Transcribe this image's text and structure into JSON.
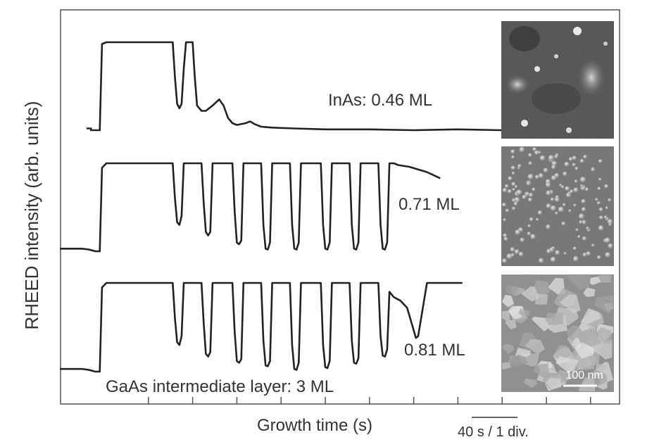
{
  "chart_data": {
    "type": "line",
    "title": "",
    "xlabel": "Growth time (s)",
    "ylabel": "RHEED intensity (arb. units)",
    "scale_bar_label": "40 s / 1 div.",
    "bottom_annotation": "GaAs intermediate layer: 3 ML",
    "image_scale_label": "100 nm",
    "x_units": "divisions (1 div. = 40 s)",
    "xlim": [
      -1,
      12
    ],
    "x_ticks": [
      1,
      2,
      3,
      4,
      5,
      6,
      7,
      8,
      9,
      10,
      11
    ],
    "grid": false,
    "series": [
      {
        "name": "InAs: 0.46 ML",
        "label": "InAs: 0.46 ML",
        "color": "#222222",
        "y_low": 0.0,
        "y_high": 1.0,
        "points": [
          [
            -0.4,
            0.02
          ],
          [
            -0.3,
            0.02
          ],
          [
            -0.3,
            0.0
          ],
          [
            -0.1,
            0.0
          ],
          [
            -0.05,
            0.98
          ],
          [
            0.05,
            1.0
          ],
          [
            1.55,
            1.0
          ],
          [
            1.6,
            0.6
          ],
          [
            1.65,
            0.3
          ],
          [
            1.7,
            0.25
          ],
          [
            1.75,
            0.3
          ],
          [
            1.8,
            0.7
          ],
          [
            1.85,
            1.0
          ],
          [
            2.0,
            1.0
          ],
          [
            2.05,
            0.6
          ],
          [
            2.1,
            0.28
          ],
          [
            2.2,
            0.22
          ],
          [
            2.3,
            0.22
          ],
          [
            2.45,
            0.28
          ],
          [
            2.6,
            0.35
          ],
          [
            2.7,
            0.28
          ],
          [
            2.8,
            0.14
          ],
          [
            2.9,
            0.08
          ],
          [
            3.0,
            0.06
          ],
          [
            3.2,
            0.08
          ],
          [
            3.3,
            0.1
          ],
          [
            3.4,
            0.07
          ],
          [
            3.55,
            0.04
          ],
          [
            3.8,
            0.03
          ],
          [
            4.3,
            0.02
          ],
          [
            5.0,
            0.01
          ],
          [
            6.0,
            0.01
          ],
          [
            7.0,
            0.0
          ],
          [
            8.0,
            0.01
          ],
          [
            9.0,
            0.0
          ],
          [
            9.5,
            0.0
          ]
        ]
      },
      {
        "name": "0.71 ML",
        "label": "0.71 ML",
        "color": "#222222",
        "y_low": 0.0,
        "y_high": 1.0,
        "points": [
          [
            -1.0,
            0.03
          ],
          [
            -0.5,
            0.03
          ],
          [
            -0.35,
            0.02
          ],
          [
            -0.2,
            0.0
          ],
          [
            -0.1,
            0.0
          ],
          [
            -0.05,
            0.95
          ],
          [
            0.05,
            1.0
          ],
          [
            1.55,
            1.0
          ],
          [
            1.6,
            0.6
          ],
          [
            1.65,
            0.33
          ],
          [
            1.7,
            0.3
          ],
          [
            1.75,
            0.4
          ],
          [
            1.8,
            1.0
          ],
          [
            2.2,
            1.0
          ],
          [
            2.25,
            0.55
          ],
          [
            2.3,
            0.22
          ],
          [
            2.35,
            0.18
          ],
          [
            2.4,
            0.22
          ],
          [
            2.45,
            1.0
          ],
          [
            2.9,
            1.0
          ],
          [
            2.95,
            0.45
          ],
          [
            3.0,
            0.1
          ],
          [
            3.05,
            0.08
          ],
          [
            3.1,
            0.12
          ],
          [
            3.15,
            1.0
          ],
          [
            3.55,
            1.0
          ],
          [
            3.6,
            0.3
          ],
          [
            3.65,
            0.03
          ],
          [
            3.7,
            0.02
          ],
          [
            3.75,
            0.1
          ],
          [
            3.8,
            1.0
          ],
          [
            4.2,
            1.0
          ],
          [
            4.25,
            0.3
          ],
          [
            4.3,
            0.03
          ],
          [
            4.35,
            0.02
          ],
          [
            4.4,
            0.1
          ],
          [
            4.45,
            1.0
          ],
          [
            4.9,
            1.0
          ],
          [
            4.95,
            0.3
          ],
          [
            5.0,
            0.03
          ],
          [
            5.05,
            0.02
          ],
          [
            5.1,
            0.1
          ],
          [
            5.15,
            1.0
          ],
          [
            5.55,
            1.0
          ],
          [
            5.6,
            0.3
          ],
          [
            5.65,
            0.03
          ],
          [
            5.7,
            0.02
          ],
          [
            5.75,
            0.1
          ],
          [
            5.8,
            1.0
          ],
          [
            6.2,
            1.0
          ],
          [
            6.25,
            0.3
          ],
          [
            6.3,
            0.03
          ],
          [
            6.35,
            0.02
          ],
          [
            6.4,
            0.1
          ],
          [
            6.45,
            1.0
          ],
          [
            6.55,
            1.0
          ],
          [
            6.65,
            0.98
          ],
          [
            6.9,
            0.96
          ],
          [
            7.3,
            0.9
          ],
          [
            7.6,
            0.83
          ]
        ]
      },
      {
        "name": "0.81 ML",
        "label": "0.81 ML",
        "color": "#222222",
        "y_low": 0.0,
        "y_high": 1.0,
        "points": [
          [
            -1.0,
            0.03
          ],
          [
            -0.5,
            0.03
          ],
          [
            -0.35,
            0.02
          ],
          [
            -0.2,
            0.0
          ],
          [
            -0.1,
            0.0
          ],
          [
            -0.05,
            0.95
          ],
          [
            0.05,
            1.0
          ],
          [
            1.55,
            1.0
          ],
          [
            1.6,
            0.6
          ],
          [
            1.65,
            0.33
          ],
          [
            1.7,
            0.3
          ],
          [
            1.75,
            0.4
          ],
          [
            1.8,
            1.0
          ],
          [
            2.2,
            1.0
          ],
          [
            2.25,
            0.55
          ],
          [
            2.3,
            0.2
          ],
          [
            2.35,
            0.17
          ],
          [
            2.4,
            0.22
          ],
          [
            2.45,
            1.0
          ],
          [
            2.9,
            1.0
          ],
          [
            2.95,
            0.45
          ],
          [
            3.0,
            0.12
          ],
          [
            3.05,
            0.1
          ],
          [
            3.1,
            0.14
          ],
          [
            3.15,
            1.0
          ],
          [
            3.55,
            1.0
          ],
          [
            3.6,
            0.35
          ],
          [
            3.65,
            0.07
          ],
          [
            3.7,
            0.06
          ],
          [
            3.75,
            0.12
          ],
          [
            3.8,
            1.0
          ],
          [
            4.2,
            1.0
          ],
          [
            4.25,
            0.3
          ],
          [
            4.3,
            0.03
          ],
          [
            4.35,
            0.02
          ],
          [
            4.4,
            0.1
          ],
          [
            4.45,
            1.0
          ],
          [
            4.9,
            1.0
          ],
          [
            4.95,
            0.3
          ],
          [
            5.0,
            0.05
          ],
          [
            5.05,
            0.04
          ],
          [
            5.1,
            0.12
          ],
          [
            5.15,
            1.0
          ],
          [
            5.55,
            1.0
          ],
          [
            5.6,
            0.35
          ],
          [
            5.65,
            0.1
          ],
          [
            5.7,
            0.09
          ],
          [
            5.75,
            0.15
          ],
          [
            5.8,
            1.0
          ],
          [
            6.2,
            1.0
          ],
          [
            6.25,
            0.4
          ],
          [
            6.3,
            0.18
          ],
          [
            6.35,
            0.17
          ],
          [
            6.4,
            0.25
          ],
          [
            6.45,
            0.9
          ],
          [
            6.55,
            0.84
          ],
          [
            6.7,
            0.8
          ],
          [
            6.85,
            0.72
          ],
          [
            6.95,
            0.55
          ],
          [
            7.05,
            0.38
          ],
          [
            7.1,
            0.4
          ],
          [
            7.2,
            0.7
          ],
          [
            7.3,
            1.0
          ],
          [
            8.1,
            1.0
          ]
        ]
      }
    ],
    "afm_images": [
      {
        "caption": "",
        "appearance": "dark, sparse bright islands"
      },
      {
        "caption": "",
        "appearance": "dense small quantum dots"
      },
      {
        "caption": "",
        "appearance": "rough faceted surface",
        "scale_label": "100 nm"
      }
    ]
  }
}
